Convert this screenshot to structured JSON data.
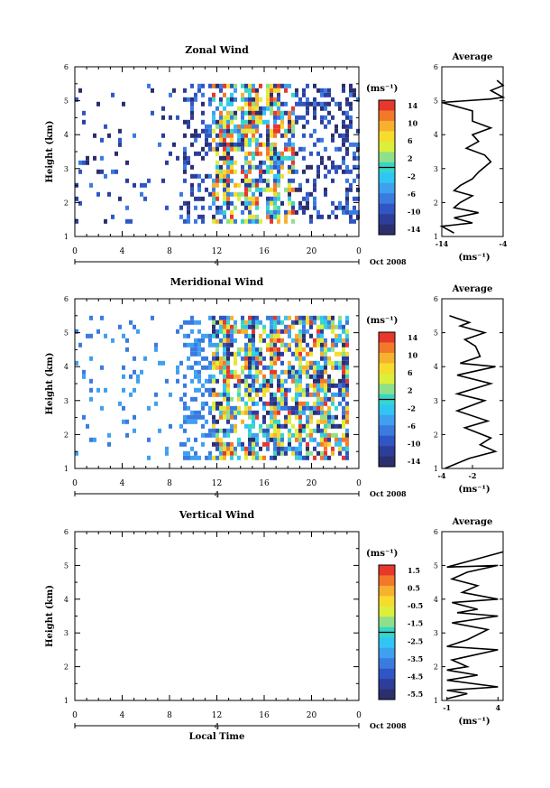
{
  "colors": {
    "scale": [
      "#2b2f6e",
      "#2c3d9a",
      "#2f56c4",
      "#3a7be0",
      "#3fa0f0",
      "#30c6f4",
      "#36d6c9",
      "#8fe08a",
      "#dcef3b",
      "#f7dc2e",
      "#f7b12e",
      "#f4782a",
      "#e8372b"
    ],
    "divider": "#000000"
  },
  "chart_data": [
    {
      "type": "heatmap",
      "title": "Zonal Wind",
      "ylabel": "Height (km)",
      "ylim": [
        1,
        6
      ],
      "yticks": [
        "1",
        "2",
        "3",
        "4",
        "5",
        "6"
      ],
      "xlim": [
        0,
        24
      ],
      "xticks": [
        "0",
        "4",
        "8",
        "12",
        "16",
        "20",
        "0"
      ],
      "date_marker": "4",
      "date_label": "Oct 2008",
      "xlabel": "",
      "colorbar": {
        "unit": "(ms⁻¹)",
        "ticks": [
          "14",
          "10",
          "6",
          "2",
          "-2",
          "-6",
          "-10",
          "-14"
        ],
        "range": [
          -14,
          14
        ]
      },
      "data_time_range": [
        0,
        24
      ],
      "data_height_range": [
        1.5,
        5.5
      ],
      "dense_time_range": [
        11.5,
        18.5
      ],
      "average": {
        "title": "Average",
        "xlim": [
          -14,
          -4
        ],
        "xticks": [
          "-14",
          "-4"
        ],
        "xlabel": "(ms⁻¹)",
        "ylim": [
          1,
          6
        ],
        "yticks": [
          "1",
          "2",
          "3",
          "4",
          "5",
          "6"
        ],
        "profile": [
          [
            -12,
            1.1
          ],
          [
            -14,
            1.3
          ],
          [
            -9,
            1.4
          ],
          [
            -12,
            1.55
          ],
          [
            -8,
            1.7
          ],
          [
            -12,
            1.85
          ],
          [
            -11,
            2.0
          ],
          [
            -9,
            2.2
          ],
          [
            -12,
            2.35
          ],
          [
            -11,
            2.5
          ],
          [
            -9,
            2.7
          ],
          [
            -8,
            2.9
          ],
          [
            -6,
            3.2
          ],
          [
            -7,
            3.4
          ],
          [
            -10,
            3.6
          ],
          [
            -8,
            3.8
          ],
          [
            -9,
            4.0
          ],
          [
            -6,
            4.2
          ],
          [
            -9,
            4.4
          ],
          [
            -9,
            4.7
          ],
          [
            -14,
            4.95
          ],
          [
            -6,
            5.05
          ],
          [
            -4,
            5.1
          ],
          [
            -6,
            5.3
          ],
          [
            -4,
            5.45
          ],
          [
            -5,
            5.6
          ]
        ]
      }
    },
    {
      "type": "heatmap",
      "title": "Meridional Wind",
      "ylabel": "Height (km)",
      "ylim": [
        1,
        6
      ],
      "yticks": [
        "1",
        "2",
        "3",
        "4",
        "5",
        "6"
      ],
      "xlim": [
        0,
        24
      ],
      "xticks": [
        "0",
        "4",
        "8",
        "12",
        "16",
        "20",
        "0"
      ],
      "date_marker": "4",
      "date_label": "Oct 2008",
      "xlabel": "",
      "colorbar": {
        "unit": "(ms⁻¹)",
        "ticks": [
          "14",
          "10",
          "6",
          "2",
          "-2",
          "-6",
          "-10",
          "-14"
        ],
        "range": [
          -14,
          14
        ]
      },
      "data_time_range": [
        0,
        23
      ],
      "data_height_range": [
        1.3,
        5.5
      ],
      "dense_time_range": [
        11.5,
        23
      ],
      "average": {
        "title": "Average",
        "xlim": [
          -4,
          0
        ],
        "xticks": [
          "-4",
          "-2"
        ],
        "xlabel": "(ms⁻¹)",
        "ylim": [
          1,
          6
        ],
        "yticks": [
          "1",
          "2",
          "3",
          "4",
          "5",
          "6"
        ],
        "profile": [
          [
            -3.8,
            1.0
          ],
          [
            -2.2,
            1.3
          ],
          [
            -0.5,
            1.5
          ],
          [
            -1.5,
            1.7
          ],
          [
            -0.8,
            1.9
          ],
          [
            -2.5,
            2.2
          ],
          [
            -1,
            2.4
          ],
          [
            -3,
            2.7
          ],
          [
            -1.2,
            3.0
          ],
          [
            -3,
            3.2
          ],
          [
            -0.8,
            3.5
          ],
          [
            -3,
            3.75
          ],
          [
            -0.5,
            4.0
          ],
          [
            -2.8,
            4.1
          ],
          [
            -1.5,
            4.3
          ],
          [
            -1.8,
            4.6
          ],
          [
            -2.5,
            4.8
          ],
          [
            -1.2,
            5.0
          ],
          [
            -2.8,
            5.2
          ],
          [
            -2.2,
            5.3
          ],
          [
            -3.5,
            5.5
          ]
        ]
      }
    },
    {
      "type": "heatmap",
      "title": "Vertical Wind",
      "ylabel": "Height (km)",
      "ylim": [
        1,
        6
      ],
      "yticks": [
        "1",
        "2",
        "3",
        "4",
        "5",
        "6"
      ],
      "xlim": [
        0,
        24
      ],
      "xticks": [
        "0",
        "4",
        "8",
        "12",
        "16",
        "20",
        "0"
      ],
      "date_marker": "4",
      "date_label": "Oct 2008",
      "xlabel": "Local Time",
      "colorbar": {
        "unit": "(ms⁻¹)",
        "ticks": [
          "1.5",
          "0.5",
          "-0.5",
          "-1.5",
          "-2.5",
          "-3.5",
          "-4.5",
          "-5.5"
        ],
        "range": [
          -6,
          2
        ]
      },
      "data_time_range": null,
      "average": {
        "title": "Average",
        "xlim": [
          -1.5,
          4.5
        ],
        "xticks": [
          "-1",
          "4"
        ],
        "xlabel": "(ms⁻¹)",
        "ylim": [
          1,
          6
        ],
        "yticks": [
          "1",
          "2",
          "3",
          "4",
          "5",
          "6"
        ],
        "profile": [
          [
            -1,
            1.05
          ],
          [
            1,
            1.2
          ],
          [
            -1,
            1.3
          ],
          [
            4,
            1.4
          ],
          [
            -1,
            1.6
          ],
          [
            2,
            1.75
          ],
          [
            -1,
            1.9
          ],
          [
            1,
            2.0
          ],
          [
            -0.5,
            2.2
          ],
          [
            4,
            2.5
          ],
          [
            -1,
            2.6
          ],
          [
            1,
            2.8
          ],
          [
            3,
            3.1
          ],
          [
            -0.5,
            3.3
          ],
          [
            4,
            3.5
          ],
          [
            0,
            3.6
          ],
          [
            2,
            3.7
          ],
          [
            -0.5,
            3.9
          ],
          [
            4,
            4.0
          ],
          [
            0.5,
            4.2
          ],
          [
            2,
            4.4
          ],
          [
            -0.5,
            4.6
          ],
          [
            1,
            4.8
          ],
          [
            4,
            5.0
          ],
          [
            -1,
            4.95
          ],
          [
            4.5,
            5.4
          ]
        ]
      }
    }
  ]
}
